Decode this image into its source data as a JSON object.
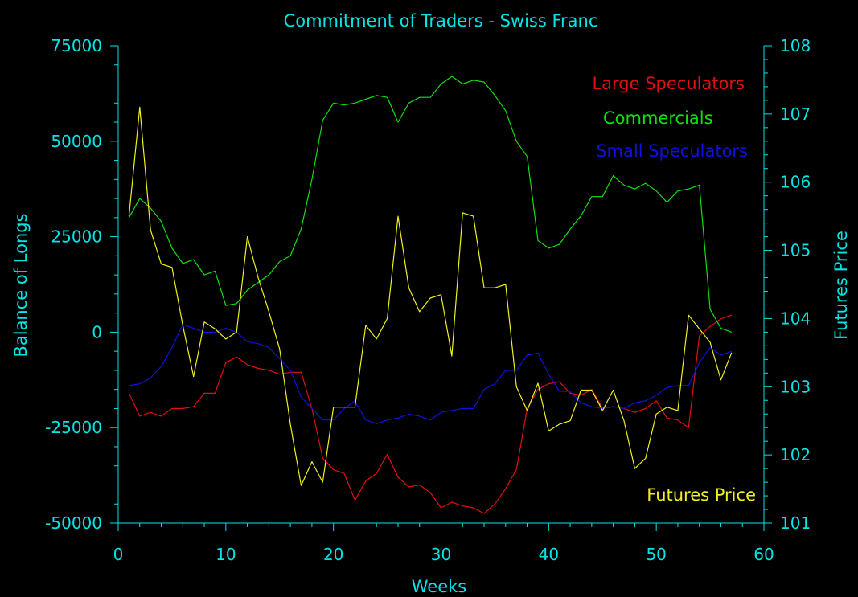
{
  "chart_data": {
    "type": "line",
    "title": "Commitment of Traders - Swiss Franc",
    "xlabel": "Weeks",
    "ylabel": "Balance of Longs",
    "y2label": "Futures Price",
    "xlim": [
      0,
      60
    ],
    "ylim": [
      -50000,
      75000
    ],
    "y2lim": [
      101,
      108
    ],
    "xticks": [
      "0",
      "10",
      "20",
      "30",
      "40",
      "50",
      "60"
    ],
    "yticks": [
      "-50000",
      "-25000",
      "0",
      "25000",
      "50000",
      "75000"
    ],
    "y2ticks": [
      "101",
      "102",
      "103",
      "104",
      "105",
      "106",
      "107",
      "108"
    ],
    "grid": false,
    "legend_placement": "top-right",
    "colors": {
      "background": "#000000",
      "axis": "#00e5e5",
      "large": "#e01010",
      "commercials": "#10e010",
      "small": "#1010e0",
      "futures": "#f0f020"
    },
    "x": [
      1,
      2,
      3,
      4,
      5,
      6,
      7,
      8,
      9,
      10,
      11,
      12,
      13,
      14,
      15,
      16,
      17,
      18,
      19,
      20,
      21,
      22,
      23,
      24,
      25,
      26,
      27,
      28,
      29,
      30,
      31,
      32,
      33,
      34,
      35,
      36,
      37,
      38,
      39,
      40,
      41,
      42,
      43,
      44,
      45,
      46,
      47,
      48,
      49,
      50,
      51,
      52,
      53,
      54,
      55,
      56,
      57
    ],
    "series": [
      {
        "name": "Large Speculators",
        "axis": "left",
        "values": [
          -16000,
          -22000,
          -21000,
          -22000,
          -20000,
          -20000,
          -19500,
          -16000,
          -16000,
          -8000,
          -6500,
          -8500,
          -9500,
          -10000,
          -11000,
          -10500,
          -10500,
          -20000,
          -33000,
          -36000,
          -37000,
          -44000,
          -39000,
          -37000,
          -32000,
          -38000,
          -40500,
          -40000,
          -42000,
          -46000,
          -44500,
          -45500,
          -46000,
          -47500,
          -45000,
          -41000,
          -36000,
          -20000,
          -15000,
          -13500,
          -13000,
          -16000,
          -16500,
          -15000,
          -20000,
          -19500,
          -20000,
          -21000,
          -20000,
          -18000,
          -22500,
          -23000,
          -25000,
          -1000,
          1500,
          3500,
          4500
        ]
      },
      {
        "name": "Commercials",
        "axis": "left",
        "values": [
          30000,
          35000,
          32500,
          29000,
          22000,
          18000,
          19000,
          15000,
          16000,
          7000,
          7500,
          11000,
          13000,
          15000,
          18500,
          20000,
          27000,
          40000,
          55500,
          60000,
          59500,
          60000,
          61000,
          62000,
          61500,
          55000,
          60000,
          61500,
          61500,
          65000,
          67000,
          65000,
          66000,
          65500,
          62000,
          58000,
          50000,
          46000,
          24000,
          22000,
          23000,
          27000,
          30500,
          35500,
          35500,
          41000,
          38500,
          37500,
          39000,
          37000,
          34000,
          37000,
          37500,
          38500,
          6000,
          1000,
          0
        ]
      },
      {
        "name": "Small Speculators",
        "axis": "left",
        "values": [
          -14000,
          -13500,
          -12000,
          -9000,
          -4000,
          2000,
          1000,
          0,
          0,
          1000,
          0,
          -2500,
          -3000,
          -4000,
          -7000,
          -10000,
          -17000,
          -20000,
          -23000,
          -23000,
          -20000,
          -18000,
          -23000,
          -24000,
          -23000,
          -22500,
          -21500,
          -22000,
          -23000,
          -21000,
          -20500,
          -20000,
          -20000,
          -15000,
          -13500,
          -10000,
          -10000,
          -6000,
          -5500,
          -11000,
          -15500,
          -15500,
          -18500,
          -19500,
          -20000,
          -19500,
          -20000,
          -18500,
          -18000,
          -16500,
          -14500,
          -14000,
          -14000,
          -8000,
          -4000,
          -6000,
          -5000
        ]
      },
      {
        "name": "Futures Price",
        "axis": "right",
        "values": [
          105.5,
          107.1,
          105.3,
          104.8,
          104.75,
          103.9,
          103.15,
          103.95,
          103.85,
          103.7,
          103.8,
          105.2,
          104.6,
          104.1,
          103.55,
          102.45,
          101.55,
          101.9,
          101.6,
          102.7,
          102.7,
          102.7,
          103.9,
          103.7,
          104.0,
          105.5,
          104.45,
          104.1,
          104.3,
          104.35,
          103.45,
          105.55,
          105.5,
          104.45,
          104.45,
          104.5,
          103.0,
          102.65,
          103.05,
          102.35,
          102.45,
          102.5,
          102.95,
          102.95,
          102.65,
          102.95,
          102.5,
          101.8,
          101.95,
          102.6,
          102.7,
          102.65,
          104.05,
          103.85,
          103.65,
          103.1,
          103.5
        ]
      }
    ]
  }
}
